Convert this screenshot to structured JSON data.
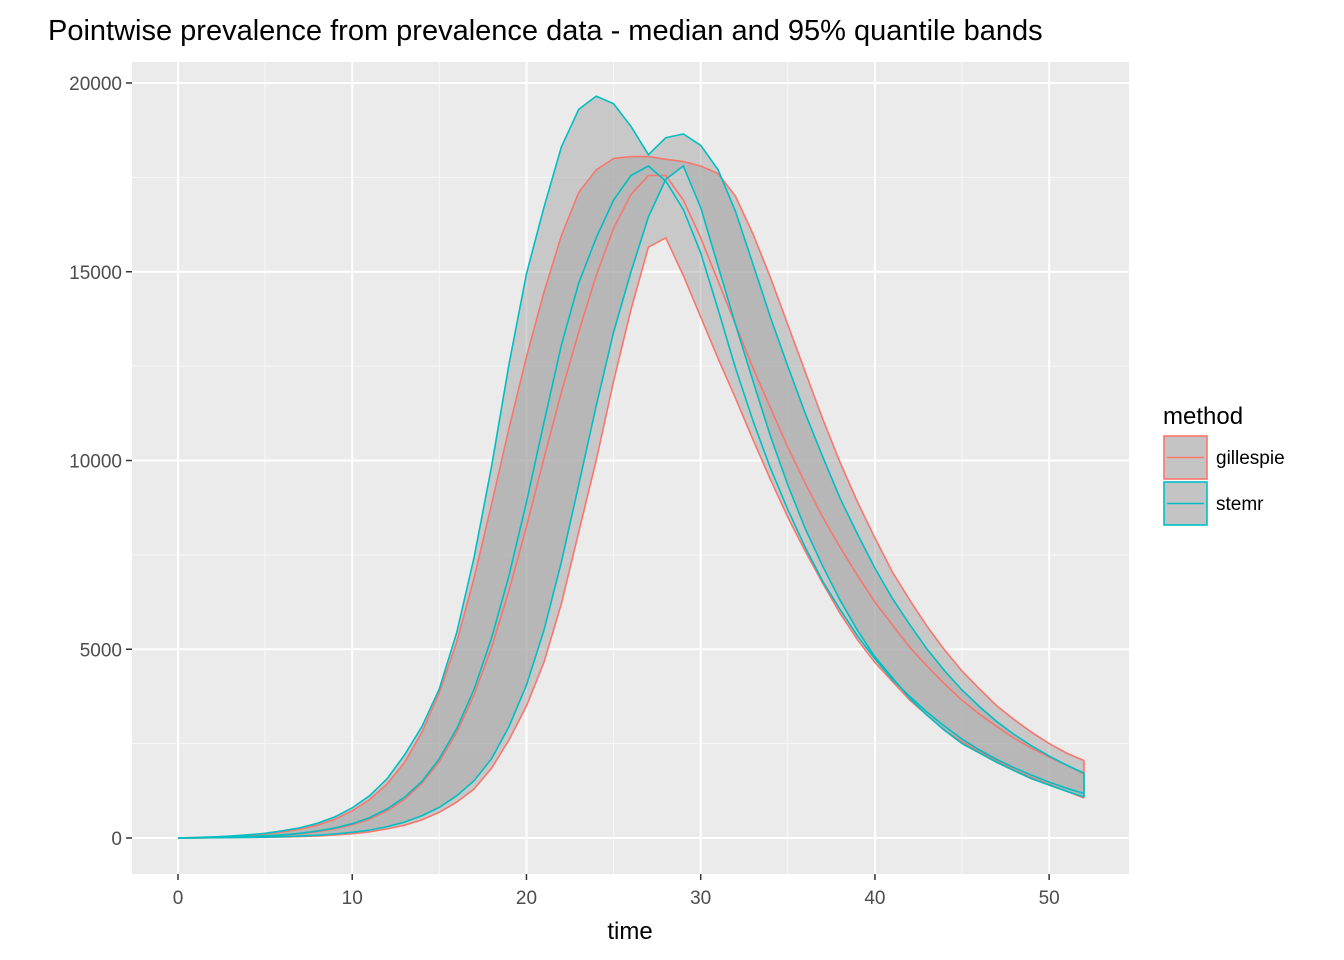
{
  "chart_data": {
    "type": "area",
    "title": "Pointwise prevalence from prevalence data - median and 95% quantile bands",
    "xlabel": "time",
    "ylabel": "",
    "xlim": [
      0,
      52
    ],
    "ylim": [
      0,
      20000
    ],
    "x_ticks": [
      0,
      10,
      20,
      30,
      40,
      50
    ],
    "y_ticks": [
      0,
      5000,
      10000,
      15000,
      20000
    ],
    "grid": true,
    "panel_background": "#ebebeb",
    "band_fill": "#a6a6a6",
    "legend": {
      "title": "method",
      "position": "right",
      "items": [
        {
          "label": "gillespie",
          "color": "#f8766d"
        },
        {
          "label": "stemr",
          "color": "#00bfc4"
        }
      ]
    },
    "x": [
      0,
      1,
      2,
      3,
      4,
      5,
      6,
      7,
      8,
      9,
      10,
      11,
      12,
      13,
      14,
      15,
      16,
      17,
      18,
      19,
      20,
      21,
      22,
      23,
      24,
      25,
      26,
      27,
      28,
      29,
      30,
      31,
      32,
      33,
      34,
      35,
      36,
      37,
      38,
      39,
      40,
      41,
      42,
      43,
      44,
      45,
      46,
      47,
      48,
      49,
      50,
      51,
      52
    ],
    "series": [
      {
        "name": "gillespie",
        "color": "#f8766d",
        "lower": [
          0,
          2,
          5,
          8,
          12,
          18,
          26,
          38,
          55,
          80,
          115,
          165,
          240,
          340,
          480,
          680,
          950,
          1300,
          1850,
          2600,
          3500,
          4650,
          6200,
          8100,
          10000,
          12100,
          14000,
          15650,
          15900,
          14900,
          13800,
          12700,
          11650,
          10550,
          9500,
          8500,
          7600,
          6750,
          5950,
          5250,
          4650,
          4150,
          3650,
          3250,
          2850,
          2550,
          2280,
          2050,
          1800,
          1600,
          1420,
          1240,
          1060
        ],
        "median": [
          0,
          5,
          12,
          20,
          32,
          50,
          75,
          110,
          165,
          240,
          350,
          500,
          720,
          1020,
          1450,
          2020,
          2800,
          3800,
          5050,
          6550,
          8250,
          10050,
          11800,
          13400,
          14900,
          16150,
          17050,
          17550,
          17550,
          16900,
          15900,
          14750,
          13600,
          12450,
          11400,
          10350,
          9400,
          8500,
          7700,
          6950,
          6250,
          5650,
          5050,
          4550,
          4080,
          3650,
          3280,
          2950,
          2640,
          2380,
          2140,
          1930,
          1700
        ],
        "upper": [
          0,
          10,
          25,
          42,
          70,
          105,
          160,
          235,
          340,
          500,
          720,
          1020,
          1430,
          2000,
          2800,
          3850,
          5200,
          6900,
          8850,
          10850,
          12750,
          14450,
          15950,
          17100,
          17700,
          18000,
          18050,
          18050,
          17980,
          17920,
          17800,
          17600,
          17000,
          16000,
          14850,
          13600,
          12350,
          11100,
          9950,
          8900,
          7950,
          7050,
          6300,
          5600,
          4980,
          4420,
          3950,
          3500,
          3130,
          2800,
          2500,
          2250,
          2050
        ]
      },
      {
        "name": "stemr",
        "color": "#00bfc4",
        "lower": [
          0,
          3,
          7,
          11,
          16,
          24,
          34,
          50,
          75,
          105,
          150,
          210,
          300,
          420,
          590,
          810,
          1120,
          1520,
          2100,
          2950,
          4050,
          5500,
          7300,
          9350,
          11450,
          13400,
          15000,
          16450,
          17450,
          17800,
          16700,
          15150,
          13600,
          12100,
          10650,
          9350,
          8200,
          7200,
          6300,
          5500,
          4800,
          4250,
          3700,
          3250,
          2850,
          2500,
          2250,
          2000,
          1780,
          1570,
          1400,
          1240,
          1090
        ],
        "median": [
          0,
          6,
          14,
          24,
          38,
          58,
          85,
          125,
          185,
          265,
          380,
          540,
          770,
          1080,
          1500,
          2100,
          2900,
          3950,
          5300,
          6950,
          8900,
          11000,
          13050,
          14700,
          15900,
          16900,
          17550,
          17800,
          17400,
          16650,
          15500,
          14000,
          12450,
          11050,
          9800,
          8700,
          7700,
          6800,
          6050,
          5350,
          4750,
          4200,
          3750,
          3330,
          2960,
          2620,
          2330,
          2080,
          1860,
          1660,
          1480,
          1320,
          1180
        ],
        "upper": [
          0,
          12,
          30,
          52,
          85,
          125,
          190,
          270,
          390,
          560,
          800,
          1120,
          1570,
          2200,
          2950,
          3950,
          5450,
          7450,
          9850,
          12550,
          14950,
          16700,
          18300,
          19300,
          19650,
          19450,
          18850,
          18100,
          18550,
          18650,
          18350,
          17700,
          16600,
          15200,
          13800,
          12500,
          11250,
          10100,
          9000,
          8050,
          7150,
          6350,
          5650,
          5000,
          4430,
          3920,
          3480,
          3080,
          2740,
          2440,
          2170,
          1930,
          1720
        ]
      }
    ]
  }
}
